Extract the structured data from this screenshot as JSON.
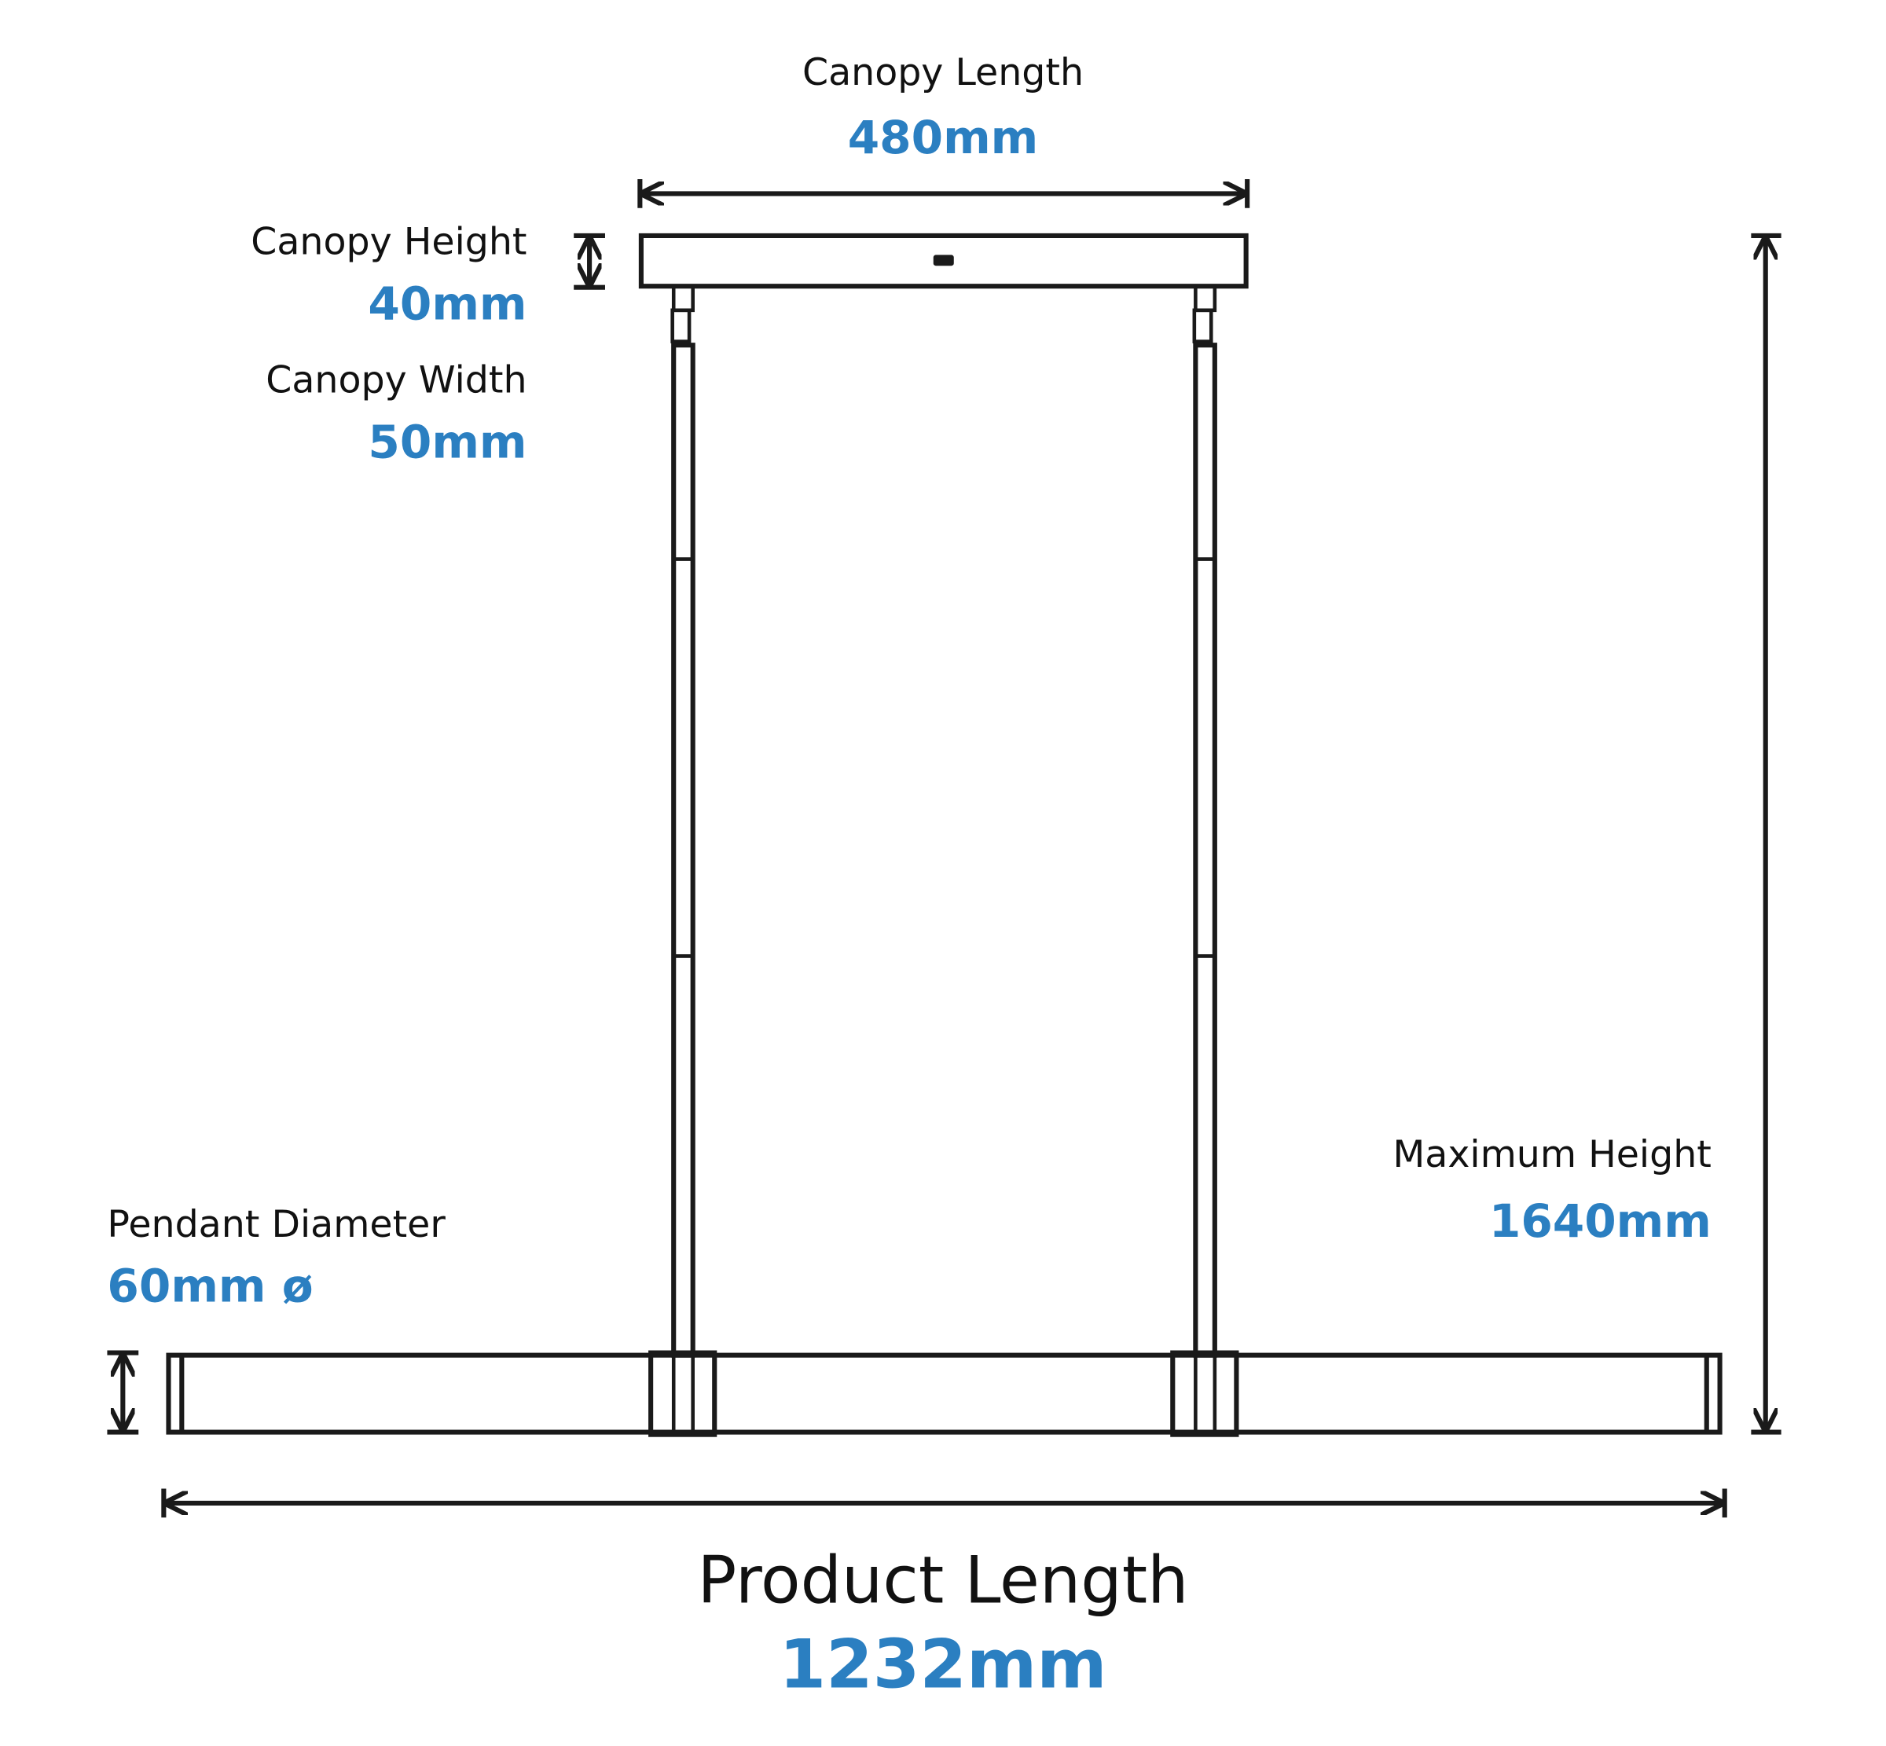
{
  "dimensions": {
    "canopy_length": {
      "label": "Canopy Length",
      "value": "480mm"
    },
    "canopy_height": {
      "label": "Canopy Height",
      "value": "40mm"
    },
    "canopy_width": {
      "label": "Canopy Width",
      "value": "50mm"
    },
    "pendant_diameter": {
      "label": "Pendant Diameter",
      "value": "60mm ø"
    },
    "maximum_height": {
      "label": "Maximum Height",
      "value": "1640mm"
    },
    "product_length": {
      "label": "Product Length",
      "value": "1232mm"
    }
  }
}
